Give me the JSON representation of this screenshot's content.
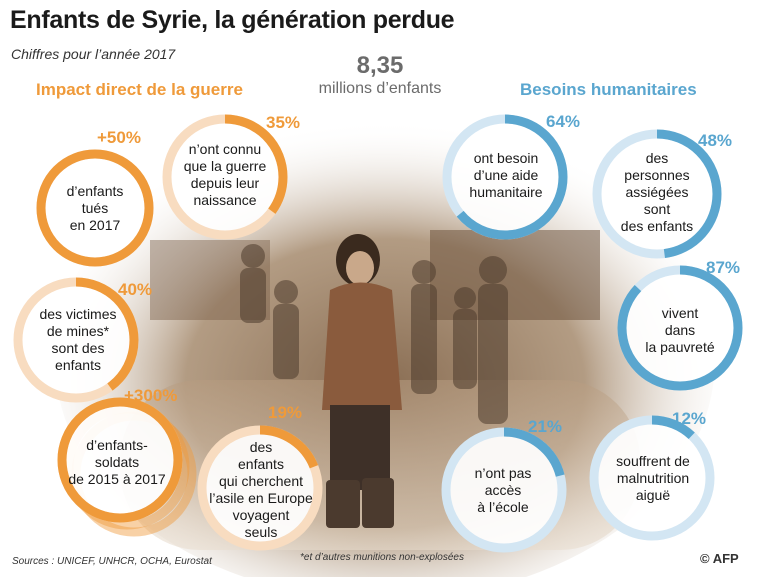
{
  "title": "Enfants de Syrie, la génération perdue",
  "subtitle": "Chiffres pour l’année 2017",
  "headline": {
    "value": "8,35",
    "label": "millions d’enfants"
  },
  "left_heading": "Impact direct de la guerre",
  "right_heading": "Besoins humanitaires",
  "colors": {
    "orange": "#ef9a3a",
    "blue": "#5aa6cf",
    "orange_light": "#f8dcc0",
    "blue_light": "#d3e6f3"
  },
  "left_stats": [
    {
      "pct": "+50%",
      "text": "d’enfants\ntués\nen 2017",
      "fill": 1.0
    },
    {
      "pct": "35%",
      "text": "n’ont connu\nque la guerre\ndepuis leur\nnaissance",
      "fill": 0.35
    },
    {
      "pct": "40%",
      "text": "des victimes\nde mines*\nsont des\nenfants",
      "fill": 0.4
    },
    {
      "pct": "+300%",
      "text": "d’enfants-\nsoldats\nde 2015 à 2017",
      "fill": 1.0
    },
    {
      "pct": "19%",
      "text": "des\nenfants\nqui cherchent\nl’asile en Europe\nvoyagent\nseuls",
      "fill": 0.19
    }
  ],
  "right_stats": [
    {
      "pct": "64%",
      "text": "ont besoin\nd’une aide\nhumanitaire",
      "fill": 0.64
    },
    {
      "pct": "48%",
      "text": "des\npersonnes\nassiégées\nsont\ndes enfants",
      "fill": 0.48
    },
    {
      "pct": "87%",
      "text": "vivent\ndans\nla pauvreté",
      "fill": 0.87
    },
    {
      "pct": "21%",
      "text": "n’ont pas\naccès\nà l’école",
      "fill": 0.21
    },
    {
      "pct": "12%",
      "text": "souffrent de\nmalnutrition\naiguë",
      "fill": 0.12
    }
  ],
  "footer": {
    "sources": "Sources : UNICEF, UNHCR, OCHA, Eurostat",
    "note": "*et d’autres munitions non-explosées",
    "credit": "© AFP"
  }
}
